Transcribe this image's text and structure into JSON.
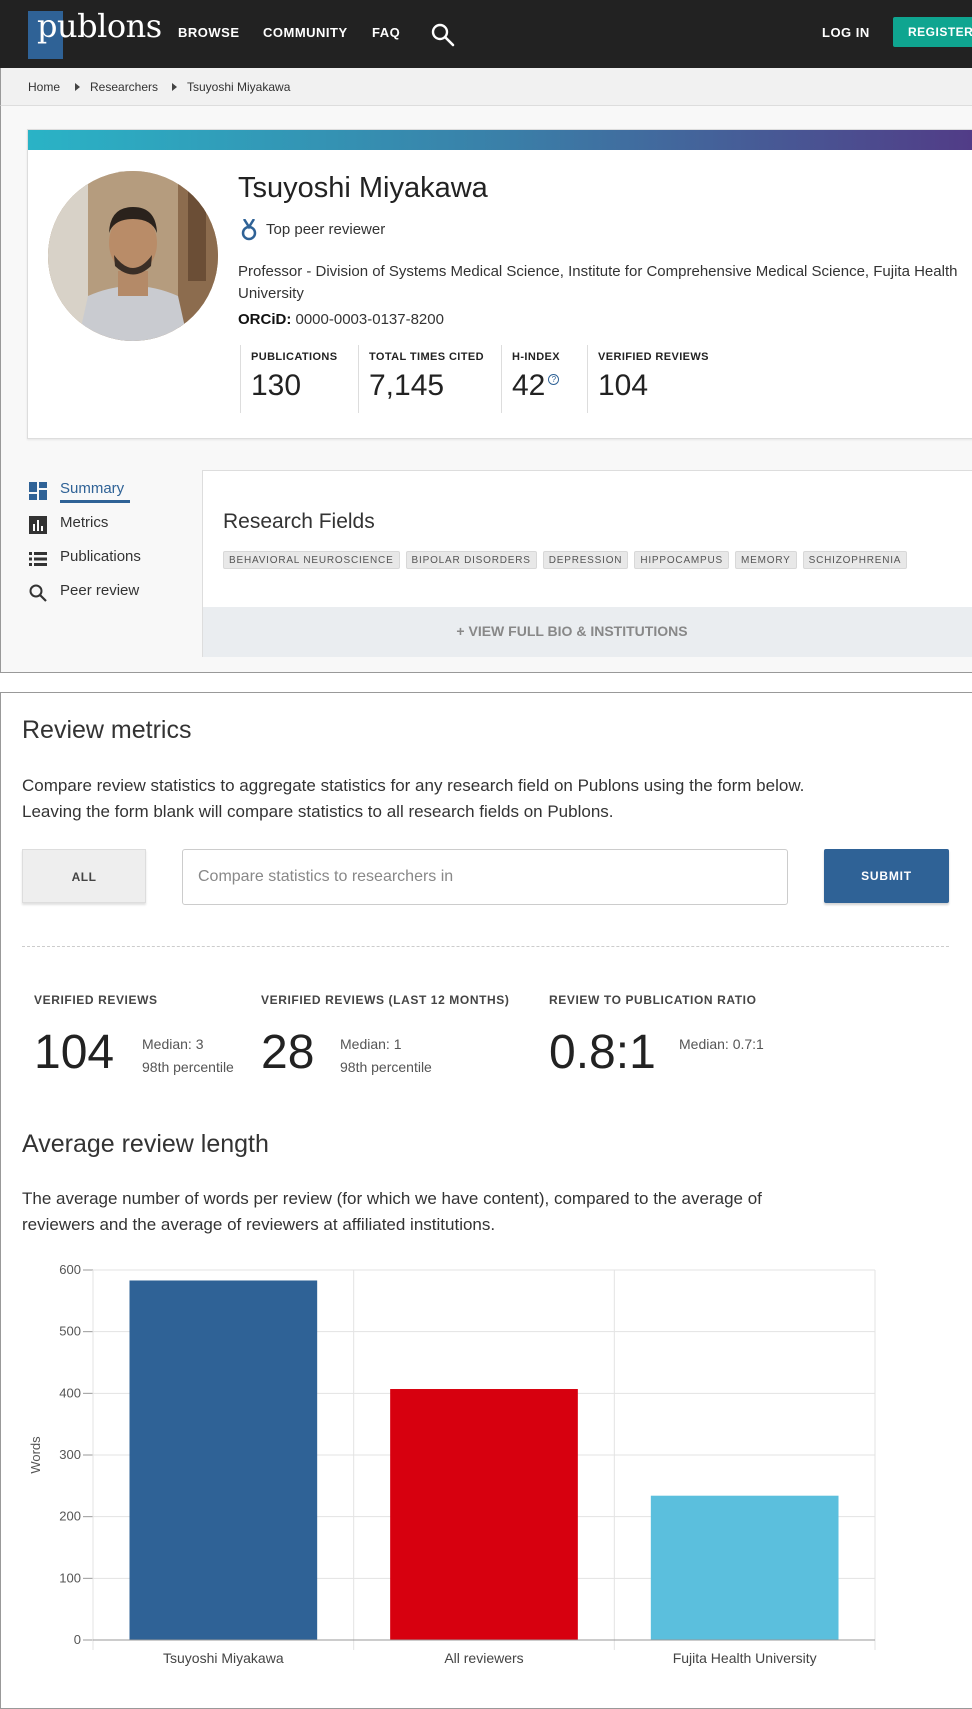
{
  "nav": {
    "logo_text": "publons",
    "browse": "BROWSE",
    "community": "COMMUNITY",
    "faq": "FAQ",
    "login": "LOG IN",
    "register": "REGISTER"
  },
  "breadcrumb": [
    "Home",
    "Researchers",
    "Tsuyoshi Miyakawa"
  ],
  "profile": {
    "name": "Tsuyoshi Miyakawa",
    "badge": "Top peer reviewer",
    "affiliation": "Professor - Division of Systems Medical Science, Institute for Comprehensive Medical Science, Fujita Health University",
    "orcid_label": "ORCiD:",
    "orcid": "0000-0003-0137-8200",
    "stats": [
      {
        "label": "PUBLICATIONS",
        "value": "130"
      },
      {
        "label": "TOTAL TIMES CITED",
        "value": "7,145"
      },
      {
        "label": "H-INDEX",
        "value": "42"
      },
      {
        "label": "VERIFIED REVIEWS",
        "value": "104"
      }
    ],
    "hindex_help": "?"
  },
  "sidenav": [
    {
      "label": "Summary",
      "icon": "dashboard-icon",
      "active": true
    },
    {
      "label": "Metrics",
      "icon": "bar-chart-icon",
      "active": false
    },
    {
      "label": "Publications",
      "icon": "list-icon",
      "active": false
    },
    {
      "label": "Peer review",
      "icon": "search-icon",
      "active": false
    }
  ],
  "research_fields": {
    "title": "Research Fields",
    "tags": [
      "BEHAVIORAL NEUROSCIENCE",
      "BIPOLAR DISORDERS",
      "DEPRESSION",
      "HIPPOCAMPUS",
      "MEMORY",
      "SCHIZOPHRENIA"
    ],
    "view_bio": "+ VIEW FULL BIO & INSTITUTIONS"
  },
  "review_metrics": {
    "title": "Review metrics",
    "description": "Compare review statistics to aggregate statistics for any research field on Publons using the form below. Leaving the form blank will compare statistics to all research fields on Publons.",
    "all_button": "ALL",
    "input_placeholder": "Compare statistics to researchers in",
    "input_value": "",
    "submit_button": "SUBMIT",
    "metrics": [
      {
        "label": "VERIFIED REVIEWS",
        "value": "104",
        "median": "Median: 3",
        "percentile": "98th percentile"
      },
      {
        "label": "VERIFIED REVIEWS (LAST 12 MONTHS)",
        "value": "28",
        "median": "Median: 1",
        "percentile": "98th percentile"
      },
      {
        "label": "REVIEW TO PUBLICATION RATIO",
        "value": "0.8:1",
        "median": "Median: 0.7:1",
        "percentile": ""
      }
    ]
  },
  "avg_review": {
    "title": "Average review length",
    "description": "The average number of words per review (for which we have content), compared to the average of  reviewers and the average of reviewers at affiliated institutions."
  },
  "chart_data": {
    "type": "bar",
    "categories": [
      "Tsuyoshi Miyakawa",
      "All reviewers",
      "Fujita Health University"
    ],
    "values": [
      583,
      407,
      234
    ],
    "colors": [
      "#2f6296",
      "#d7000f",
      "#5bbfdd"
    ],
    "xlabel": "",
    "ylabel": "Words",
    "ylim": [
      0,
      600
    ],
    "yticks": [
      0,
      100,
      200,
      300,
      400,
      500,
      600
    ],
    "grid": true
  },
  "colors": {
    "brand": "#2f6296",
    "register": "#0fa590",
    "nav_bg": "#222222"
  }
}
